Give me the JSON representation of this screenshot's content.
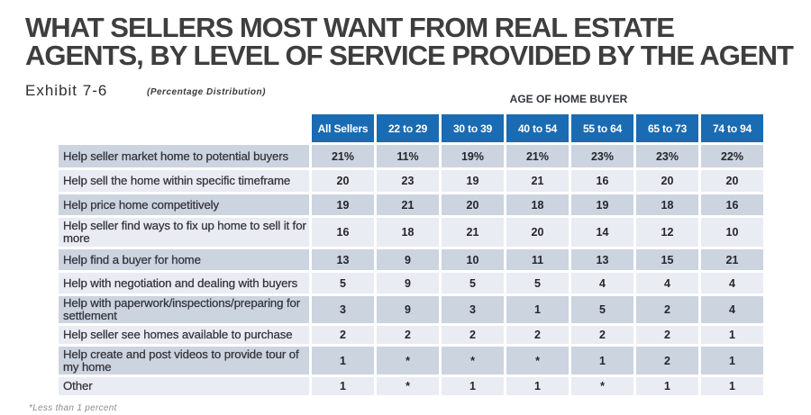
{
  "header": {
    "title_line1": "WHAT SELLERS MOST WANT FROM REAL ESTATE",
    "title_line2": "AGENTS, BY LEVEL OF SERVICE PROVIDED BY THE AGENT",
    "exhibit": "Exhibit 7-6",
    "subtitle": "(Percentage Distribution)"
  },
  "chart_data": {
    "type": "table",
    "title": "What Sellers Most Want From Real Estate Agents, By Level of Service Provided by the Agent",
    "group_header": "AGE OF HOME BUYER",
    "columns": [
      "All Sellers",
      "22 to 29",
      "30 to 39",
      "40 to 54",
      "55 to 64",
      "65 to 73",
      "74 to 94"
    ],
    "rows": [
      {
        "label": "Help seller market home to potential buyers",
        "values": [
          "21%",
          "11%",
          "19%",
          "21%",
          "23%",
          "23%",
          "22%"
        ]
      },
      {
        "label": "Help sell the home within specific timeframe",
        "values": [
          "20",
          "23",
          "19",
          "21",
          "16",
          "20",
          "20"
        ]
      },
      {
        "label": "Help price home competitively",
        "values": [
          "19",
          "21",
          "20",
          "18",
          "19",
          "18",
          "16"
        ]
      },
      {
        "label": "Help seller find ways to fix up home to sell it for more",
        "values": [
          "16",
          "18",
          "21",
          "20",
          "14",
          "12",
          "10"
        ]
      },
      {
        "label": "Help find a buyer for home",
        "values": [
          "13",
          "9",
          "10",
          "11",
          "13",
          "15",
          "21"
        ]
      },
      {
        "label": "Help with negotiation and dealing with buyers",
        "values": [
          "5",
          "9",
          "5",
          "5",
          "4",
          "4",
          "4"
        ]
      },
      {
        "label": "Help with paperwork/inspections/preparing for settlement",
        "values": [
          "3",
          "9",
          "3",
          "1",
          "5",
          "2",
          "4"
        ]
      },
      {
        "label": "Help seller see homes available to purchase",
        "values": [
          "2",
          "2",
          "2",
          "2",
          "2",
          "2",
          "1"
        ]
      },
      {
        "label": "Help create and post videos to provide tour of my home",
        "values": [
          "1",
          "*",
          "*",
          "*",
          "1",
          "2",
          "1"
        ]
      },
      {
        "label": "Other",
        "values": [
          "1",
          "*",
          "1",
          "1",
          "*",
          "1",
          "1"
        ]
      }
    ],
    "footnote": "*Less than 1 percent"
  },
  "colors": {
    "header_bg": "#1b6bb2",
    "row_dark": "#ccd4e0",
    "row_light": "#e9ecf2",
    "title_color": "#3e3e3e"
  }
}
